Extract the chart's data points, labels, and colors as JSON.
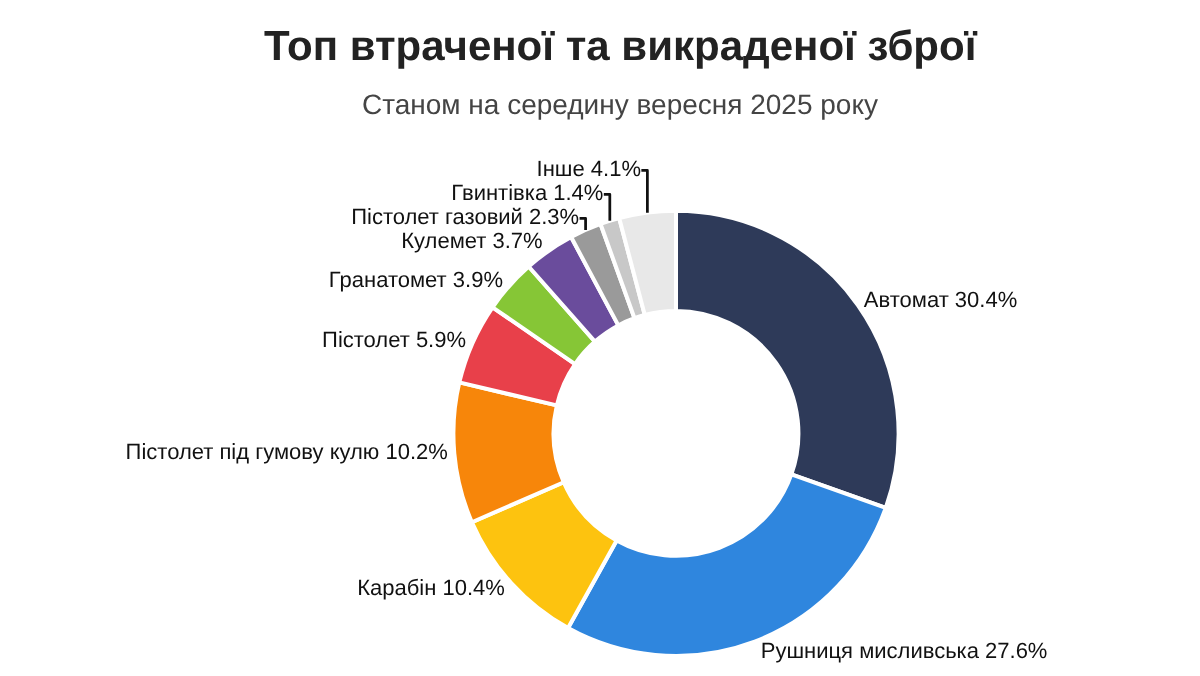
{
  "chart_data": {
    "type": "donut",
    "title": "Топ втраченої та викраденої зброї",
    "subtitle": "Станом на середину вересня 2025 року",
    "categories": [
      "Автомат",
      "Рушниця мисливська",
      "Карабін",
      "Пістолет під гумову кулю",
      "Пістолет",
      "Гранатомет",
      "Кулемет",
      "Пістолет газовий",
      "Гвинтівка",
      "Інше"
    ],
    "values": [
      30.4,
      27.6,
      10.4,
      10.2,
      5.9,
      3.9,
      3.7,
      2.3,
      1.4,
      4.1
    ],
    "value_labels": [
      "30.4%",
      "27.6%",
      "10.4%",
      "10.2%",
      "5.9%",
      "3.9%",
      "3.7%",
      "2.3%",
      "1.4%",
      "4.1%"
    ],
    "colors": [
      "#2e3a59",
      "#2f86de",
      "#fdc30f",
      "#f7860a",
      "#e8404a",
      "#86c636",
      "#6a4c9c",
      "#9a9a9a",
      "#c8c8c8",
      "#e8e8e8"
    ],
    "legend": false
  }
}
